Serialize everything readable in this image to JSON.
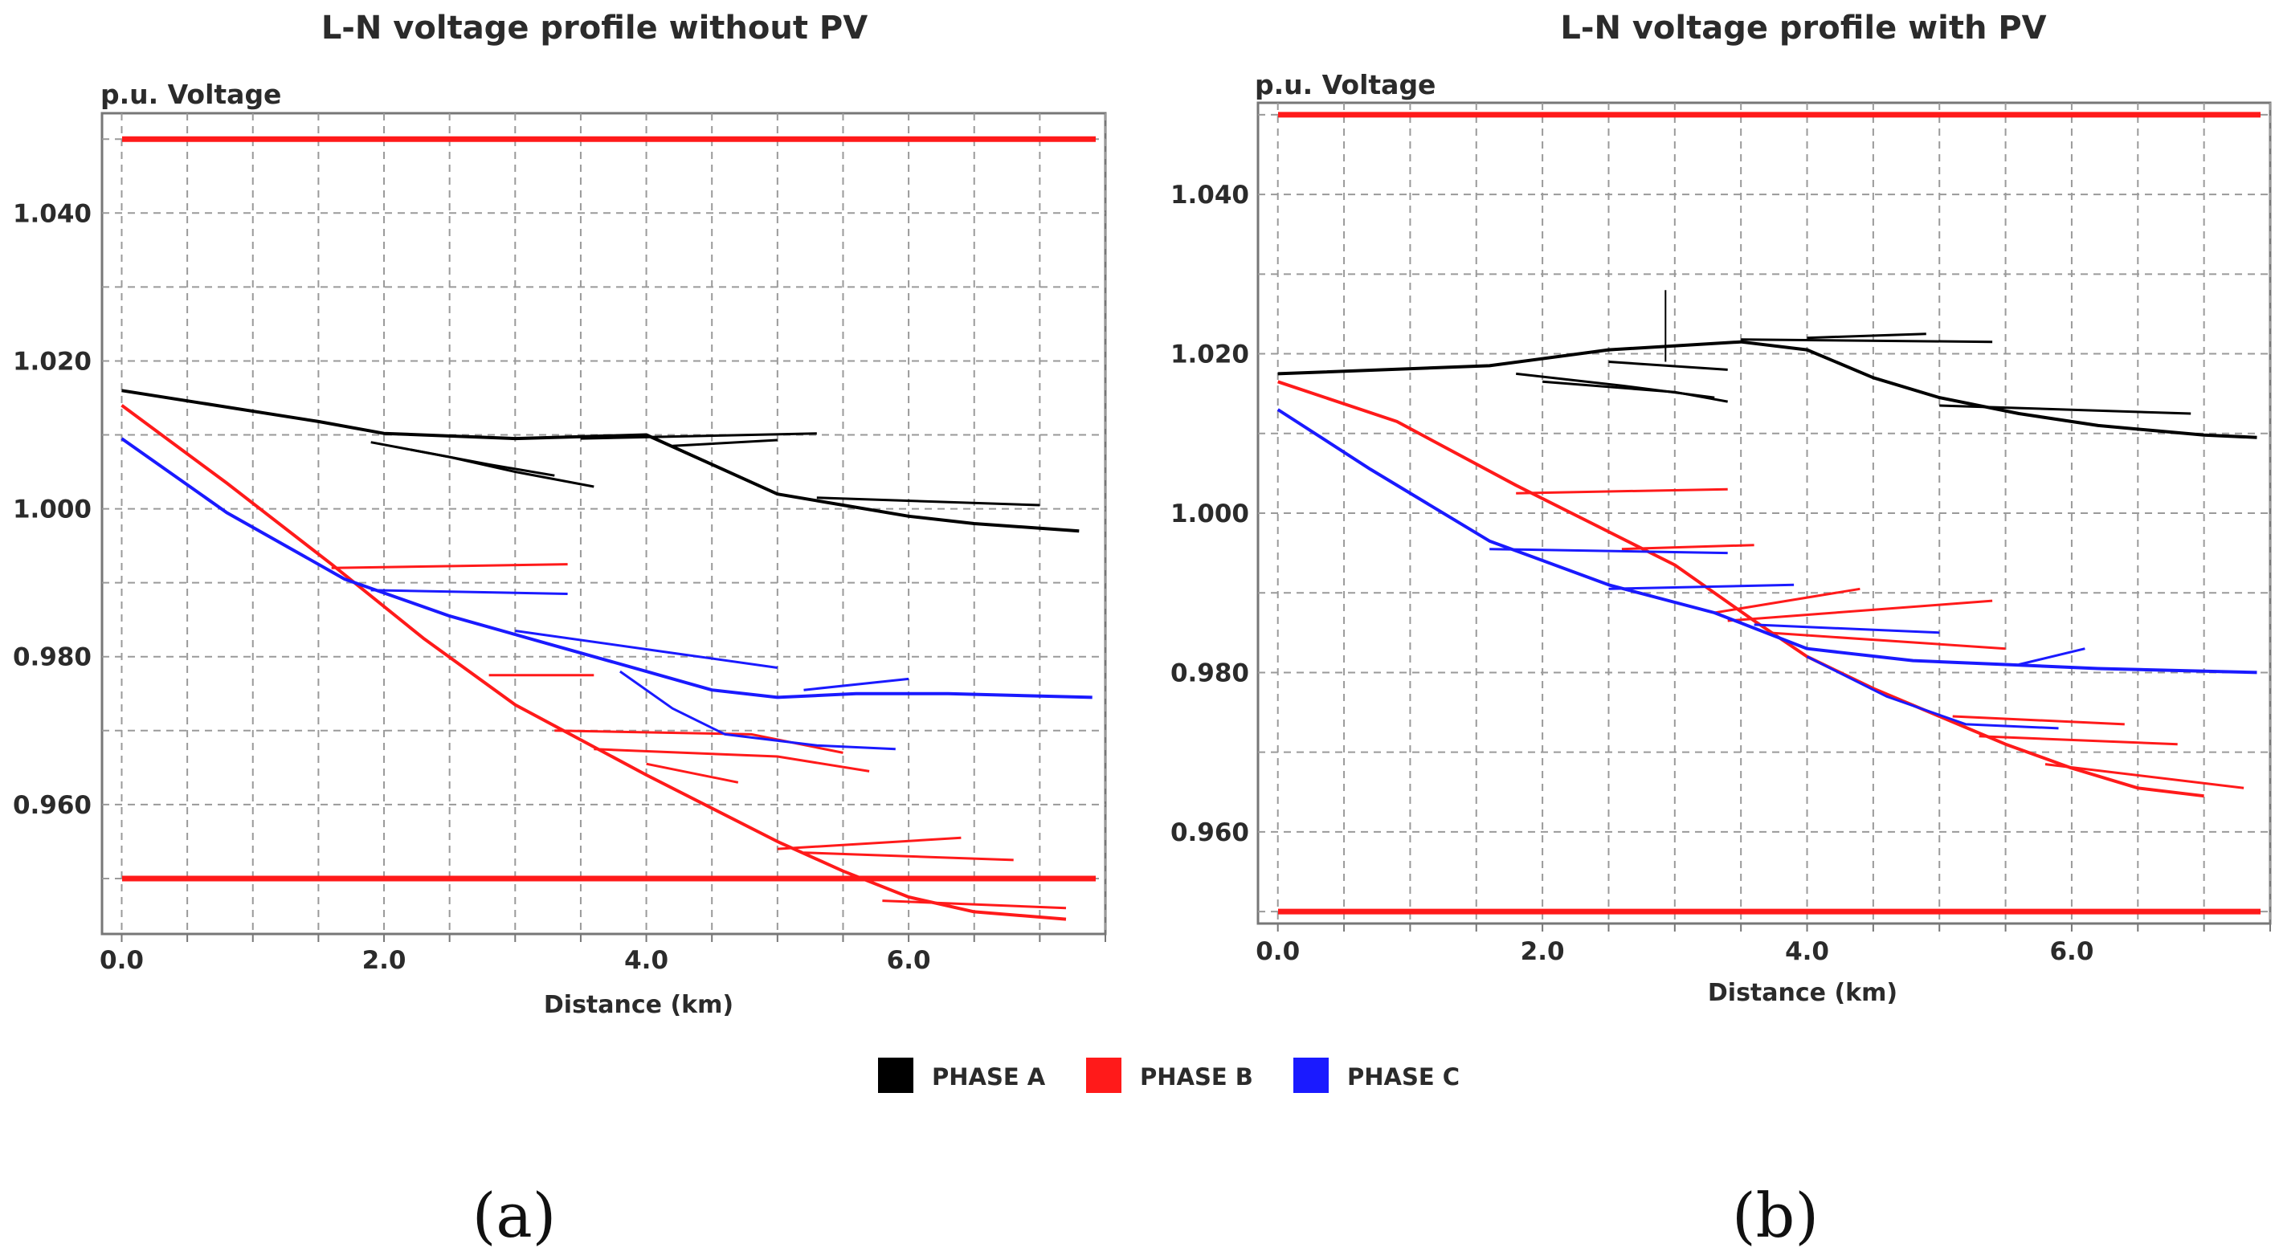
{
  "colors": {
    "phase_a": "#000000",
    "phase_b": "#ff1a1a",
    "phase_c": "#1a1aff",
    "limit": "#ff1a1a"
  },
  "legend": [
    {
      "label": "PHASE A",
      "color": "#000000"
    },
    {
      "label": "PHASE B",
      "color": "#ff1a1a"
    },
    {
      "label": "PHASE C",
      "color": "#1a1aff"
    }
  ],
  "chart_data": [
    {
      "panel_label": "(a)",
      "type": "line",
      "title": "L-N voltage profile without PV",
      "ylabel": "p.u. Voltage",
      "xlabel": "Distance (km)",
      "xlim": [
        -0.15,
        7.5
      ],
      "ylim": [
        0.9425,
        1.0535
      ],
      "xticks": [
        0.0,
        2.0,
        4.0,
        6.0
      ],
      "xtick_labels": [
        "0.0",
        "2.0",
        "4.0",
        "6.0"
      ],
      "yticks": [
        0.96,
        0.98,
        1.0,
        1.02,
        1.04
      ],
      "ytick_labels": [
        "0.960",
        "0.980",
        "1.000",
        "1.020",
        "1.040"
      ],
      "limits": [
        1.05,
        0.95
      ],
      "series": [
        {
          "name": "PHASE A",
          "color": "#000000",
          "main": [
            [
              0,
              1.016
            ],
            [
              1.5,
              1.0118
            ],
            [
              2.0,
              1.0102
            ],
            [
              3.0,
              1.0095
            ],
            [
              4.0,
              1.01
            ],
            [
              4.5,
              1.006
            ],
            [
              5.0,
              1.002
            ],
            [
              5.5,
              1.0005
            ],
            [
              6.0,
              0.999
            ],
            [
              6.5,
              0.998
            ],
            [
              7.3,
              0.997
            ]
          ],
          "branches": [
            [
              [
                1.9,
                1.009
              ],
              [
                2.5,
                1.007
              ],
              [
                3.0,
                1.005
              ],
              [
                3.6,
                1.003
              ]
            ],
            [
              [
                2.2,
                1.008
              ],
              [
                2.8,
                1.006
              ],
              [
                3.3,
                1.0045
              ]
            ],
            [
              [
                3.5,
                1.0095
              ],
              [
                5.3,
                1.0102
              ]
            ],
            [
              [
                4.2,
                1.0085
              ],
              [
                5.0,
                1.0093
              ]
            ],
            [
              [
                5.3,
                1.0015
              ],
              [
                7.0,
                1.0005
              ]
            ]
          ]
        },
        {
          "name": "PHASE B",
          "color": "#ff1a1a",
          "main": [
            [
              0,
              1.014
            ],
            [
              0.8,
              1.0035
            ],
            [
              1.6,
              0.9925
            ],
            [
              2.3,
              0.9825
            ],
            [
              3.0,
              0.9735
            ],
            [
              4.0,
              0.964
            ],
            [
              5.0,
              0.955
            ],
            [
              5.5,
              0.951
            ],
            [
              6.0,
              0.9475
            ],
            [
              6.5,
              0.9455
            ],
            [
              7.2,
              0.9445
            ]
          ],
          "branches": [
            [
              [
                1.6,
                0.992
              ],
              [
                3.4,
                0.9925
              ]
            ],
            [
              [
                2.8,
                0.9775
              ],
              [
                3.6,
                0.9775
              ]
            ],
            [
              [
                3.3,
                0.97
              ],
              [
                4.8,
                0.9695
              ],
              [
                5.5,
                0.967
              ]
            ],
            [
              [
                3.6,
                0.9675
              ],
              [
                5.0,
                0.9665
              ],
              [
                5.7,
                0.9645
              ]
            ],
            [
              [
                4.0,
                0.9655
              ],
              [
                4.7,
                0.963
              ]
            ],
            [
              [
                5.0,
                0.954
              ],
              [
                6.4,
                0.9555
              ]
            ],
            [
              [
                5.2,
                0.9535
              ],
              [
                6.8,
                0.9525
              ]
            ],
            [
              [
                5.8,
                0.947
              ],
              [
                7.2,
                0.946
              ]
            ]
          ]
        },
        {
          "name": "PHASE C",
          "color": "#1a1aff",
          "main": [
            [
              0,
              1.0095
            ],
            [
              0.8,
              0.9995
            ],
            [
              1.7,
              0.9905
            ],
            [
              2.5,
              0.9855
            ],
            [
              3.3,
              0.9815
            ],
            [
              4.0,
              0.978
            ],
            [
              4.5,
              0.9755
            ],
            [
              5.0,
              0.9745
            ],
            [
              5.6,
              0.975
            ],
            [
              6.3,
              0.975
            ],
            [
              7.4,
              0.9745
            ]
          ],
          "branches": [
            [
              [
                1.9,
                0.989
              ],
              [
                3.4,
                0.9885
              ]
            ],
            [
              [
                3.0,
                0.9835
              ],
              [
                4.2,
                0.9805
              ],
              [
                5.0,
                0.9785
              ]
            ],
            [
              [
                3.8,
                0.978
              ],
              [
                4.2,
                0.973
              ],
              [
                4.6,
                0.9695
              ],
              [
                5.3,
                0.968
              ],
              [
                5.9,
                0.9675
              ]
            ],
            [
              [
                5.2,
                0.9755
              ],
              [
                6.0,
                0.977
              ]
            ]
          ]
        }
      ]
    },
    {
      "panel_label": "(b)",
      "type": "line",
      "title": "L-N voltage profile with PV",
      "ylabel": "p.u. Voltage",
      "xlabel": "Distance (km)",
      "xlim": [
        -0.15,
        7.5
      ],
      "ylim": [
        0.9485,
        1.0515
      ],
      "xticks": [
        0.0,
        2.0,
        4.0,
        6.0
      ],
      "xtick_labels": [
        "0.0",
        "2.0",
        "4.0",
        "6.0"
      ],
      "yticks": [
        0.96,
        0.98,
        1.0,
        1.02,
        1.04
      ],
      "ytick_labels": [
        "0.960",
        "0.980",
        "1.000",
        "1.020",
        "1.040"
      ],
      "limits": [
        1.05,
        0.95
      ],
      "series": [
        {
          "name": "PHASE A",
          "color": "#000000",
          "main": [
            [
              0,
              1.0175
            ],
            [
              1.6,
              1.0185
            ],
            [
              2.5,
              1.0205
            ],
            [
              3.5,
              1.0215
            ],
            [
              4.0,
              1.0205
            ],
            [
              4.5,
              1.017
            ],
            [
              5.0,
              1.0145
            ],
            [
              5.6,
              1.0125
            ],
            [
              6.2,
              1.011
            ],
            [
              7.0,
              1.0098
            ],
            [
              7.4,
              1.0095
            ]
          ],
          "branches": [
            [
              [
                1.8,
                1.0175
              ],
              [
                2.6,
                1.016
              ],
              [
                3.3,
                1.0145
              ]
            ],
            [
              [
                2.0,
                1.0165
              ],
              [
                3.0,
                1.0152
              ],
              [
                3.4,
                1.014
              ]
            ],
            [
              [
                2.5,
                1.019
              ],
              [
                3.4,
                1.018
              ]
            ],
            [
              [
                3.5,
                1.0218
              ],
              [
                5.4,
                1.0215
              ]
            ],
            [
              [
                4.0,
                1.022
              ],
              [
                4.9,
                1.0225
              ]
            ],
            [
              [
                5.0,
                1.0135
              ],
              [
                6.9,
                1.0125
              ]
            ]
          ],
          "spikes": [
            [
              [
                2.93,
                1.019
              ],
              [
                2.93,
                1.028
              ]
            ]
          ]
        },
        {
          "name": "PHASE B",
          "color": "#ff1a1a",
          "main": [
            [
              0,
              1.0165
            ],
            [
              0.9,
              1.0115
            ],
            [
              1.8,
              1.0035
            ],
            [
              2.4,
              0.9985
            ],
            [
              3.0,
              0.9935
            ],
            [
              3.6,
              0.9865
            ],
            [
              4.0,
              0.982
            ],
            [
              4.5,
              0.978
            ],
            [
              5.0,
              0.9745
            ],
            [
              5.5,
              0.971
            ],
            [
              6.0,
              0.968
            ],
            [
              6.5,
              0.9655
            ],
            [
              7.0,
              0.9645
            ]
          ],
          "branches": [
            [
              [
                1.8,
                1.0025
              ],
              [
                3.4,
                1.003
              ]
            ],
            [
              [
                2.6,
                0.9955
              ],
              [
                3.6,
                0.996
              ]
            ],
            [
              [
                3.3,
                0.9875
              ],
              [
                4.4,
                0.9905
              ]
            ],
            [
              [
                3.4,
                0.9865
              ],
              [
                5.0,
                0.9885
              ],
              [
                5.4,
                0.989
              ]
            ],
            [
              [
                3.7,
                0.985
              ],
              [
                5.5,
                0.983
              ]
            ],
            [
              [
                5.1,
                0.9745
              ],
              [
                6.4,
                0.9735
              ]
            ],
            [
              [
                5.3,
                0.972
              ],
              [
                6.8,
                0.971
              ]
            ],
            [
              [
                5.8,
                0.9685
              ],
              [
                7.3,
                0.9655
              ]
            ]
          ]
        },
        {
          "name": "PHASE C",
          "color": "#1a1aff",
          "main": [
            [
              0,
              1.013
            ],
            [
              0.7,
              1.0055
            ],
            [
              1.6,
              0.9965
            ],
            [
              2.5,
              0.991
            ],
            [
              3.3,
              0.9875
            ],
            [
              4.0,
              0.983
            ],
            [
              4.8,
              0.9815
            ],
            [
              5.5,
              0.981
            ],
            [
              6.2,
              0.9805
            ],
            [
              7.4,
              0.98
            ]
          ],
          "branches": [
            [
              [
                1.6,
                0.9955
              ],
              [
                3.4,
                0.995
              ]
            ],
            [
              [
                2.5,
                0.9905
              ],
              [
                3.9,
                0.991
              ]
            ],
            [
              [
                3.6,
                0.986
              ],
              [
                5.0,
                0.985
              ]
            ],
            [
              [
                4.0,
                0.982
              ],
              [
                4.6,
                0.977
              ],
              [
                5.2,
                0.9735
              ],
              [
                5.9,
                0.973
              ]
            ],
            [
              [
                5.6,
                0.981
              ],
              [
                6.1,
                0.983
              ]
            ]
          ]
        }
      ]
    }
  ]
}
